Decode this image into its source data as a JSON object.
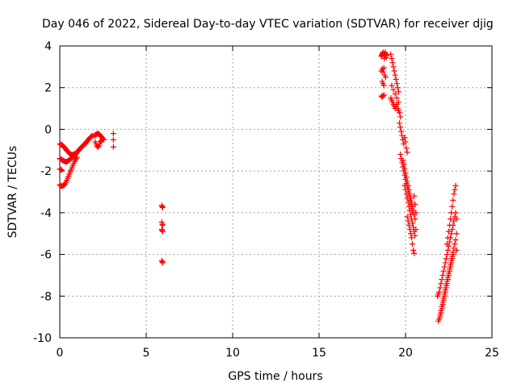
{
  "chart_data": {
    "type": "scatter",
    "title": "Day 046 of 2022, Sidereal Day-to-day VTEC variation (SDTVAR) for receiver djig",
    "xlabel": "GPS time / hours",
    "ylabel": "SDTVAR / TECUs",
    "xlim": [
      0,
      25
    ],
    "ylim": [
      -10,
      4
    ],
    "xticks": [
      0,
      5,
      10,
      15,
      20,
      25
    ],
    "yticks": [
      -10,
      -8,
      -6,
      -4,
      -2,
      0,
      2,
      4
    ],
    "grid": true,
    "marker": "+",
    "color": "#ff0000",
    "series": [
      {
        "name": "SDTVAR",
        "points": [
          [
            0.0,
            -0.7
          ],
          [
            0.05,
            -0.72
          ],
          [
            0.1,
            -0.74
          ],
          [
            0.15,
            -0.76
          ],
          [
            0.2,
            -0.8
          ],
          [
            0.25,
            -0.85
          ],
          [
            0.3,
            -0.9
          ],
          [
            0.35,
            -0.95
          ],
          [
            0.4,
            -1.0
          ],
          [
            0.45,
            -1.05
          ],
          [
            0.5,
            -1.1
          ],
          [
            0.55,
            -1.15
          ],
          [
            0.6,
            -1.18
          ],
          [
            0.65,
            -1.2
          ],
          [
            0.7,
            -1.22
          ],
          [
            0.75,
            -1.22
          ],
          [
            0.8,
            -1.2
          ],
          [
            0.85,
            -1.18
          ],
          [
            0.9,
            -1.15
          ],
          [
            0.0,
            -1.4
          ],
          [
            0.05,
            -1.42
          ],
          [
            0.1,
            -1.45
          ],
          [
            0.15,
            -1.48
          ],
          [
            0.2,
            -1.5
          ],
          [
            0.25,
            -1.52
          ],
          [
            0.3,
            -1.55
          ],
          [
            0.35,
            -1.55
          ],
          [
            0.4,
            -1.55
          ],
          [
            0.45,
            -1.53
          ],
          [
            0.5,
            -1.5
          ],
          [
            0.55,
            -1.47
          ],
          [
            0.6,
            -1.44
          ],
          [
            0.65,
            -1.4
          ],
          [
            0.7,
            -1.36
          ],
          [
            0.75,
            -1.32
          ],
          [
            0.8,
            -1.28
          ],
          [
            0.85,
            -1.24
          ],
          [
            0.9,
            -1.2
          ],
          [
            0.95,
            -1.15
          ],
          [
            1.0,
            -1.1
          ],
          [
            1.05,
            -1.05
          ],
          [
            1.1,
            -1.0
          ],
          [
            1.15,
            -0.95
          ],
          [
            1.2,
            -0.9
          ],
          [
            1.25,
            -0.86
          ],
          [
            1.3,
            -0.82
          ],
          [
            1.35,
            -0.78
          ],
          [
            1.4,
            -0.74
          ],
          [
            1.45,
            -0.7
          ],
          [
            1.5,
            -0.65
          ],
          [
            1.55,
            -0.6
          ],
          [
            1.6,
            -0.55
          ],
          [
            1.65,
            -0.5
          ],
          [
            1.7,
            -0.45
          ],
          [
            1.75,
            -0.4
          ],
          [
            1.8,
            -0.36
          ],
          [
            1.85,
            -0.33
          ],
          [
            1.9,
            -0.3
          ],
          [
            0.0,
            -1.9
          ],
          [
            0.05,
            -1.92
          ],
          [
            0.1,
            -1.95
          ],
          [
            0.0,
            -2.65
          ],
          [
            0.05,
            -2.7
          ],
          [
            0.1,
            -2.72
          ],
          [
            0.15,
            -2.72
          ],
          [
            0.2,
            -2.7
          ],
          [
            0.25,
            -2.67
          ],
          [
            0.3,
            -2.62
          ],
          [
            0.35,
            -2.55
          ],
          [
            0.4,
            -2.45
          ],
          [
            0.45,
            -2.35
          ],
          [
            0.5,
            -2.25
          ],
          [
            0.55,
            -2.15
          ],
          [
            0.6,
            -2.05
          ],
          [
            0.65,
            -1.95
          ],
          [
            0.7,
            -1.85
          ],
          [
            0.75,
            -1.75
          ],
          [
            0.8,
            -1.65
          ],
          [
            0.85,
            -1.55
          ],
          [
            0.9,
            -1.47
          ],
          [
            0.95,
            -1.4
          ],
          [
            1.0,
            -1.34
          ],
          [
            2.0,
            -0.3
          ],
          [
            2.05,
            -0.28
          ],
          [
            2.1,
            -0.25
          ],
          [
            2.15,
            -0.22
          ],
          [
            2.2,
            -0.2
          ],
          [
            2.25,
            -0.22
          ],
          [
            2.3,
            -0.25
          ],
          [
            2.35,
            -0.3
          ],
          [
            2.4,
            -0.35
          ],
          [
            2.45,
            -0.4
          ],
          [
            2.5,
            -0.45
          ],
          [
            2.55,
            -0.5
          ],
          [
            2.05,
            -0.6
          ],
          [
            2.1,
            -0.7
          ],
          [
            2.15,
            -0.8
          ],
          [
            2.2,
            -0.85
          ],
          [
            2.25,
            -0.8
          ],
          [
            2.3,
            -0.7
          ],
          [
            2.35,
            -0.6
          ],
          [
            2.4,
            -0.55
          ],
          [
            2.45,
            -0.5
          ],
          [
            3.1,
            -0.2
          ],
          [
            3.1,
            -0.5
          ],
          [
            3.1,
            -0.85
          ],
          [
            5.9,
            -3.65
          ],
          [
            5.92,
            -3.7
          ],
          [
            5.95,
            -3.75
          ],
          [
            5.9,
            -4.45
          ],
          [
            5.93,
            -4.55
          ],
          [
            5.95,
            -4.6
          ],
          [
            5.9,
            -4.8
          ],
          [
            5.92,
            -4.85
          ],
          [
            5.95,
            -4.9
          ],
          [
            5.9,
            -6.3
          ],
          [
            5.93,
            -6.35
          ],
          [
            5.95,
            -6.4
          ],
          [
            18.6,
            3.5
          ],
          [
            18.62,
            3.55
          ],
          [
            18.65,
            3.6
          ],
          [
            18.68,
            3.65
          ],
          [
            18.7,
            3.7
          ],
          [
            18.72,
            3.62
          ],
          [
            18.75,
            3.55
          ],
          [
            18.78,
            3.4
          ],
          [
            18.8,
            3.65
          ],
          [
            18.82,
            3.7
          ],
          [
            18.85,
            3.6
          ],
          [
            18.88,
            3.45
          ],
          [
            18.9,
            3.55
          ],
          [
            18.6,
            2.8
          ],
          [
            18.65,
            2.9
          ],
          [
            18.7,
            2.75
          ],
          [
            18.75,
            2.95
          ],
          [
            18.8,
            2.6
          ],
          [
            18.85,
            2.5
          ],
          [
            18.65,
            2.3
          ],
          [
            18.7,
            2.2
          ],
          [
            18.75,
            2.1
          ],
          [
            18.6,
            1.6
          ],
          [
            18.65,
            1.55
          ],
          [
            18.7,
            1.6
          ],
          [
            18.75,
            1.65
          ],
          [
            19.15,
            3.6
          ],
          [
            19.2,
            3.4
          ],
          [
            19.25,
            3.2
          ],
          [
            19.3,
            3.0
          ],
          [
            19.35,
            2.8
          ],
          [
            19.4,
            2.6
          ],
          [
            19.45,
            2.4
          ],
          [
            19.5,
            2.2
          ],
          [
            19.55,
            2.0
          ],
          [
            19.6,
            1.8
          ],
          [
            19.15,
            1.5
          ],
          [
            19.2,
            1.4
          ],
          [
            19.25,
            1.3
          ],
          [
            19.3,
            1.2
          ],
          [
            19.35,
            1.1
          ],
          [
            19.4,
            1.0
          ],
          [
            19.45,
            1.1
          ],
          [
            19.5,
            1.2
          ],
          [
            19.55,
            1.0
          ],
          [
            19.6,
            0.9
          ],
          [
            19.65,
            0.8
          ],
          [
            19.7,
            0.6
          ],
          [
            19.2,
            2.1
          ],
          [
            19.3,
            1.9
          ],
          [
            19.4,
            1.7
          ],
          [
            19.5,
            1.5
          ],
          [
            19.6,
            1.3
          ],
          [
            19.65,
            0.3
          ],
          [
            19.7,
            0.1
          ],
          [
            19.75,
            -0.1
          ],
          [
            19.8,
            -0.3
          ],
          [
            19.85,
            -0.5
          ],
          [
            19.9,
            -0.7
          ],
          [
            19.95,
            -0.4
          ],
          [
            20.0,
            -0.6
          ],
          [
            20.05,
            -0.9
          ],
          [
            20.1,
            -1.1
          ],
          [
            19.7,
            -1.2
          ],
          [
            19.75,
            -1.4
          ],
          [
            19.8,
            -1.6
          ],
          [
            19.85,
            -1.8
          ],
          [
            19.9,
            -2.0
          ],
          [
            19.95,
            -2.2
          ],
          [
            20.0,
            -2.4
          ],
          [
            20.05,
            -2.6
          ],
          [
            20.1,
            -2.8
          ],
          [
            20.15,
            -3.0
          ],
          [
            20.2,
            -3.2
          ],
          [
            20.25,
            -3.4
          ],
          [
            20.3,
            -3.6
          ],
          [
            20.35,
            -3.8
          ],
          [
            20.4,
            -4.0
          ],
          [
            19.85,
            -1.5
          ],
          [
            19.9,
            -1.7
          ],
          [
            19.95,
            -1.9
          ],
          [
            20.0,
            -2.1
          ],
          [
            20.05,
            -2.3
          ],
          [
            20.1,
            -2.5
          ],
          [
            20.15,
            -2.7
          ],
          [
            20.2,
            -2.9
          ],
          [
            20.25,
            -3.1
          ],
          [
            20.3,
            -3.3
          ],
          [
            20.35,
            -3.5
          ],
          [
            20.4,
            -3.7
          ],
          [
            20.45,
            -3.9
          ],
          [
            20.5,
            -4.1
          ],
          [
            20.55,
            -4.3
          ],
          [
            19.95,
            -2.7
          ],
          [
            20.0,
            -2.9
          ],
          [
            20.05,
            -3.1
          ],
          [
            20.1,
            -3.3
          ],
          [
            20.15,
            -3.5
          ],
          [
            20.2,
            -3.7
          ],
          [
            20.25,
            -3.9
          ],
          [
            20.3,
            -4.1
          ],
          [
            20.35,
            -4.3
          ],
          [
            20.4,
            -4.5
          ],
          [
            20.45,
            -4.7
          ],
          [
            20.5,
            -4.9
          ],
          [
            20.55,
            -5.1
          ],
          [
            20.1,
            -4.2
          ],
          [
            20.15,
            -4.4
          ],
          [
            20.2,
            -4.6
          ],
          [
            20.25,
            -4.8
          ],
          [
            20.3,
            -5.0
          ],
          [
            20.35,
            -5.2
          ],
          [
            20.4,
            -5.5
          ],
          [
            20.45,
            -5.8
          ],
          [
            20.5,
            -5.95
          ],
          [
            20.5,
            -3.2
          ],
          [
            20.55,
            -3.6
          ],
          [
            20.6,
            -4.0
          ],
          [
            20.6,
            -4.8
          ],
          [
            21.9,
            -9.2
          ],
          [
            21.95,
            -9.1
          ],
          [
            22.0,
            -8.9
          ],
          [
            22.05,
            -8.7
          ],
          [
            22.1,
            -8.5
          ],
          [
            22.15,
            -8.3
          ],
          [
            22.2,
            -8.1
          ],
          [
            22.25,
            -7.9
          ],
          [
            22.3,
            -7.7
          ],
          [
            22.35,
            -7.5
          ],
          [
            22.4,
            -7.3
          ],
          [
            22.45,
            -7.1
          ],
          [
            22.5,
            -6.9
          ],
          [
            22.55,
            -6.7
          ],
          [
            22.6,
            -6.5
          ],
          [
            22.65,
            -6.3
          ],
          [
            22.7,
            -6.1
          ],
          [
            22.75,
            -5.9
          ],
          [
            22.8,
            -5.7
          ],
          [
            22.85,
            -5.5
          ],
          [
            22.9,
            -5.3
          ],
          [
            21.85,
            -8.0
          ],
          [
            21.9,
            -7.9
          ],
          [
            21.95,
            -7.8
          ],
          [
            22.0,
            -7.6
          ],
          [
            22.05,
            -7.4
          ],
          [
            22.1,
            -7.2
          ],
          [
            22.15,
            -7.0
          ],
          [
            22.2,
            -6.8
          ],
          [
            22.25,
            -6.6
          ],
          [
            22.3,
            -6.4
          ],
          [
            22.35,
            -6.2
          ],
          [
            22.4,
            -6.0
          ],
          [
            22.45,
            -5.8
          ],
          [
            22.5,
            -5.6
          ],
          [
            22.55,
            -5.4
          ],
          [
            22.6,
            -5.2
          ],
          [
            22.65,
            -5.0
          ],
          [
            22.7,
            -4.8
          ],
          [
            22.75,
            -4.6
          ],
          [
            22.8,
            -4.4
          ],
          [
            22.85,
            -4.2
          ],
          [
            22.9,
            -4.0
          ],
          [
            22.0,
            -9.0
          ],
          [
            22.05,
            -8.8
          ],
          [
            22.1,
            -8.6
          ],
          [
            22.15,
            -8.4
          ],
          [
            22.2,
            -8.2
          ],
          [
            22.25,
            -8.0
          ],
          [
            22.3,
            -7.8
          ],
          [
            22.35,
            -7.6
          ],
          [
            22.4,
            -7.4
          ],
          [
            22.45,
            -7.2
          ],
          [
            22.5,
            -7.0
          ],
          [
            22.55,
            -6.8
          ],
          [
            22.6,
            -6.6
          ],
          [
            22.65,
            -6.4
          ],
          [
            22.7,
            -6.2
          ],
          [
            22.75,
            -6.0
          ],
          [
            22.4,
            -5.5
          ],
          [
            22.45,
            -5.2
          ],
          [
            22.5,
            -4.9
          ],
          [
            22.55,
            -4.6
          ],
          [
            22.6,
            -4.3
          ],
          [
            22.65,
            -4.0
          ],
          [
            22.7,
            -3.7
          ],
          [
            22.75,
            -3.4
          ],
          [
            22.8,
            -3.1
          ],
          [
            22.85,
            -2.9
          ],
          [
            22.9,
            -2.7
          ],
          [
            22.95,
            -4.3
          ],
          [
            22.95,
            -5.0
          ],
          [
            22.95,
            -5.8
          ]
        ]
      }
    ]
  }
}
